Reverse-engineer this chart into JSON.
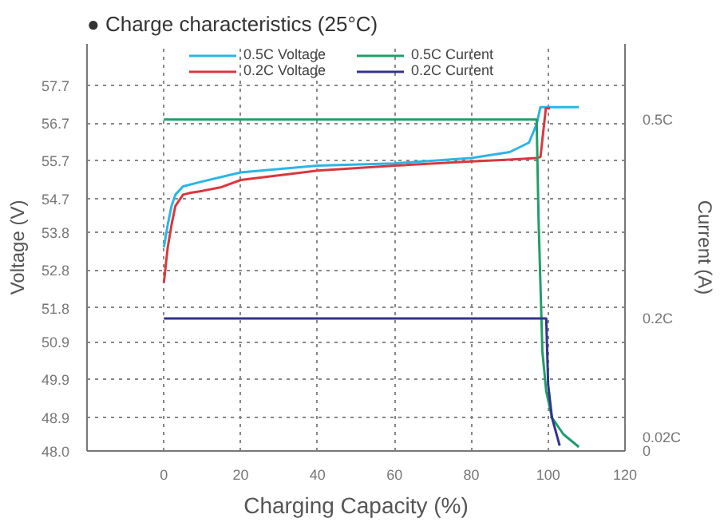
{
  "chart_data": {
    "type": "line",
    "title": "● Charge characteristics (25°C)",
    "xlabel": "Charging Capacity (%)",
    "ylabel": "Voltage (V)",
    "y2label": "Current (A)",
    "xlim": [
      -20,
      120
    ],
    "xticks": [
      0,
      20,
      40,
      60,
      80,
      100,
      120
    ],
    "ylim": [
      48.0,
      58.8
    ],
    "yticks": [
      {
        "value": 48.0,
        "label": "48.0"
      },
      48.9,
      49.9,
      50.9,
      51.8,
      52.8,
      53.8,
      54.7,
      55.7,
      56.7,
      57.7
    ],
    "y2lim": [
      0,
      0.614
    ],
    "y2ticks": [
      0,
      {
        "value": 0.02,
        "label": "0.02C"
      },
      {
        "value": 0.2,
        "label": "0.2C"
      },
      {
        "value": 0.5,
        "label": "0.5C"
      }
    ],
    "grid": true,
    "legend": "top",
    "marker": "none",
    "line_style": "solid",
    "series": [
      {
        "name": "0.5C Voltage",
        "color": "#2bb5e6",
        "x": [
          0,
          1,
          2,
          3,
          5,
          10,
          20,
          40,
          60,
          80,
          90,
          95,
          97,
          98,
          108
        ],
        "values": [
          53.4,
          54.0,
          54.5,
          54.8,
          55.02,
          55.15,
          55.39,
          55.57,
          55.63,
          55.77,
          55.93,
          56.18,
          56.67,
          57.12,
          57.12
        ]
      },
      {
        "name": "0.2C Voltage",
        "color": "#d9383e",
        "x": [
          0,
          1,
          2,
          3,
          5,
          7,
          10,
          15,
          20,
          40,
          60,
          80,
          90,
          97,
          98,
          99.4,
          100.5
        ],
        "values": [
          52.46,
          53.4,
          54.0,
          54.5,
          54.8,
          54.85,
          54.9,
          55.0,
          55.19,
          55.44,
          55.57,
          55.68,
          55.73,
          55.77,
          55.8,
          57.09,
          57.09
        ]
      },
      {
        "name": "0.5C Current",
        "color": "#1f9e6a",
        "axis": "y2",
        "x": [
          0,
          97,
          97.5,
          98.5,
          99.5,
          101,
          104,
          108
        ],
        "values": [
          0.5,
          0.5,
          0.35,
          0.15,
          0.09,
          0.05,
          0.025,
          0.006
        ]
      },
      {
        "name": "0.2C Current",
        "color": "#33348c",
        "axis": "y2",
        "x": [
          0,
          99.5,
          100,
          101,
          103
        ],
        "values": [
          0.2,
          0.2,
          0.1,
          0.05,
          0.008
        ]
      }
    ]
  }
}
